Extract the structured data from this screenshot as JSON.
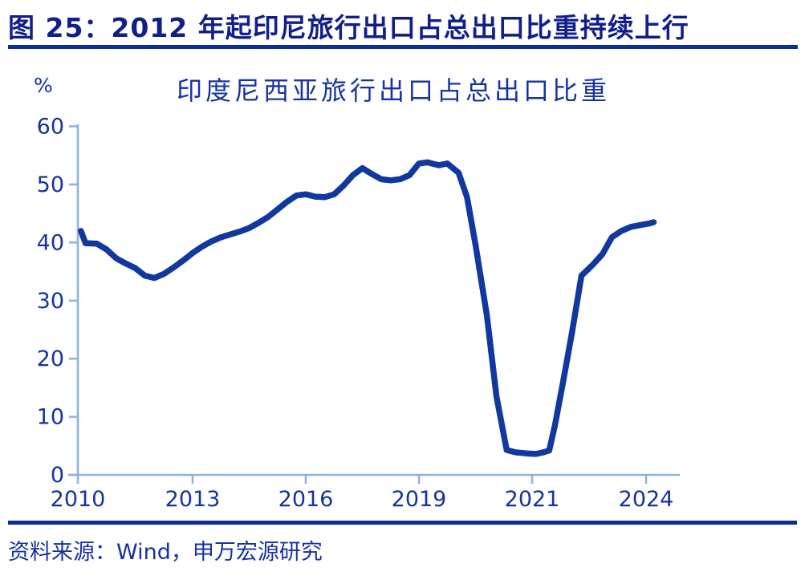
{
  "header": {
    "title": "图 25：2012 年起印尼旅行出口占总出口比重持续上行"
  },
  "footer": {
    "source": "资料来源：Wind，申万宏源研究"
  },
  "colors": {
    "header_navy": "#101F8C",
    "rule_navy": "#0A2D9B",
    "text_navy": "#16339E",
    "title_navy": "#1733A3",
    "axis_light_blue": "#8FB4E0",
    "line_navy": "#1238A0"
  },
  "chart_data": {
    "type": "line",
    "title": "印度尼西亚旅行出口占总出口比重",
    "unit_label": "%",
    "series_name": "印度尼西亚旅行出口占总出口比重",
    "xlabel": "",
    "ylabel": "%",
    "ylim": [
      0,
      60
    ],
    "grid": false,
    "legend": "none",
    "y_ticks": [
      0,
      10,
      20,
      30,
      40,
      50,
      60
    ],
    "x_tick_labels": [
      "2010",
      "2013",
      "2016",
      "2019",
      "2021",
      "2024"
    ],
    "x_tick_years": [
      2010,
      2013,
      2016,
      2019,
      2021,
      2024
    ],
    "points": [
      [
        2010.08,
        42.0
      ],
      [
        2010.2,
        39.9
      ],
      [
        2010.5,
        39.8
      ],
      [
        2010.75,
        38.8
      ],
      [
        2011.0,
        37.3
      ],
      [
        2011.25,
        36.4
      ],
      [
        2011.5,
        35.6
      ],
      [
        2011.75,
        34.3
      ],
      [
        2012.0,
        33.9
      ],
      [
        2012.25,
        34.6
      ],
      [
        2012.5,
        35.7
      ],
      [
        2012.75,
        36.9
      ],
      [
        2013.0,
        38.2
      ],
      [
        2013.25,
        39.3
      ],
      [
        2013.5,
        40.2
      ],
      [
        2013.75,
        40.9
      ],
      [
        2014.0,
        41.4
      ],
      [
        2014.25,
        41.9
      ],
      [
        2014.5,
        42.5
      ],
      [
        2014.75,
        43.4
      ],
      [
        2015.0,
        44.4
      ],
      [
        2015.25,
        45.7
      ],
      [
        2015.5,
        47.0
      ],
      [
        2015.75,
        48.1
      ],
      [
        2016.0,
        48.3
      ],
      [
        2016.25,
        47.9
      ],
      [
        2016.5,
        47.8
      ],
      [
        2016.75,
        48.3
      ],
      [
        2017.0,
        49.8
      ],
      [
        2017.25,
        51.6
      ],
      [
        2017.5,
        52.8
      ],
      [
        2017.75,
        51.8
      ],
      [
        2018.0,
        50.9
      ],
      [
        2018.25,
        50.7
      ],
      [
        2018.5,
        50.9
      ],
      [
        2018.75,
        51.6
      ],
      [
        2019.0,
        53.6
      ],
      [
        2019.15,
        53.8
      ],
      [
        2019.35,
        53.3
      ],
      [
        2019.5,
        53.6
      ],
      [
        2019.7,
        52.0
      ],
      [
        2019.85,
        47.8
      ],
      [
        2020.0,
        39.6
      ],
      [
        2020.2,
        27.5
      ],
      [
        2020.37,
        13.5
      ],
      [
        2020.55,
        4.3
      ],
      [
        2020.7,
        3.9
      ],
      [
        2020.9,
        3.7
      ],
      [
        2021.1,
        3.6
      ],
      [
        2021.3,
        3.9
      ],
      [
        2021.45,
        4.2
      ],
      [
        2021.6,
        8.5
      ],
      [
        2021.8,
        15.5
      ],
      [
        2022.05,
        24.5
      ],
      [
        2022.3,
        34.3
      ],
      [
        2022.6,
        36.2
      ],
      [
        2022.85,
        38.0
      ],
      [
        2023.1,
        40.9
      ],
      [
        2023.35,
        42.0
      ],
      [
        2023.6,
        42.7
      ],
      [
        2023.85,
        43.0
      ],
      [
        2024.1,
        43.3
      ],
      [
        2024.2,
        43.5
      ]
    ]
  }
}
